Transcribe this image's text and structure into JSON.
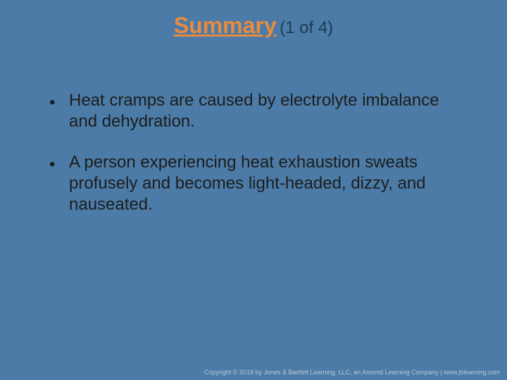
{
  "slide": {
    "background_color": "#4b7ba6",
    "title": {
      "main": "Summary",
      "sub": "(1 of 4)",
      "main_color": "#e98b3f",
      "sub_color": "#1f3a57",
      "main_fontsize": 32,
      "sub_fontsize": 24
    },
    "body": {
      "text_color": "#1d1d1d",
      "fontsize": 24,
      "line_height": 1.25,
      "bullets": [
        "Heat cramps are caused by electrolyte imbalance and dehydration.",
        "A person experiencing heat exhaustion sweats profusely and becomes light-headed, dizzy, and nauseated."
      ]
    },
    "footer": {
      "text": "Copyright © 2018 by Jones & Bartlett Learning, LLC, an Ascend Learning Company | www.jblearning.com"
    }
  }
}
